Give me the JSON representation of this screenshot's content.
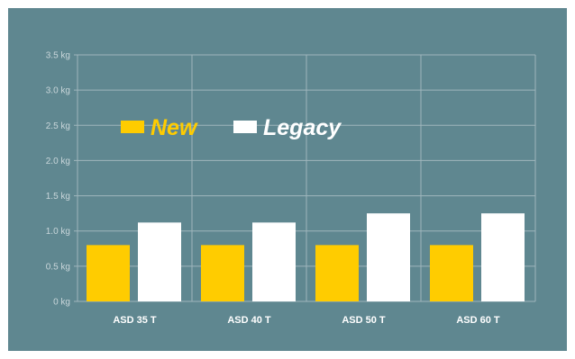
{
  "chart_data": {
    "type": "bar",
    "categories": [
      "ASD 35 T",
      "ASD 40 T",
      "ASD 50 T",
      "ASD 60 T"
    ],
    "series": [
      {
        "name": "New",
        "values": [
          0.8,
          0.8,
          0.8,
          0.8
        ],
        "color": "#ffcc00"
      },
      {
        "name": "Legacy",
        "values": [
          1.12,
          1.12,
          1.25,
          1.25
        ],
        "color": "#ffffff"
      }
    ],
    "y_ticks": [
      "0 kg",
      "0.5 kg",
      "1.0 kg",
      "1.5 kg",
      "2.0 kg",
      "2.5 kg",
      "3.0 kg",
      "3.5 kg"
    ],
    "ylim": [
      0,
      3.5
    ],
    "grid": true,
    "legend_position": "top-left",
    "background": "#5f8790",
    "title": "",
    "xlabel": "",
    "ylabel": ""
  }
}
